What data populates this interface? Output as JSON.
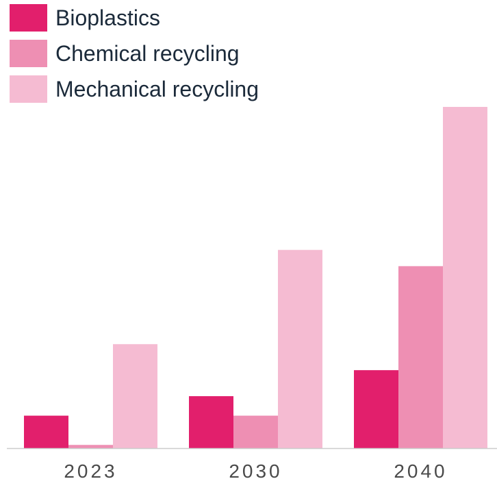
{
  "chart_data": {
    "type": "bar",
    "title": "",
    "xlabel": "",
    "ylabel": "",
    "categories": [
      "2023",
      "2030",
      "2040"
    ],
    "series": [
      {
        "name": "Bioplastics",
        "color": "#e21f6c",
        "values": [
          1.0,
          1.6,
          2.4
        ]
      },
      {
        "name": "Chemical recycling",
        "color": "#ee8fb3",
        "values": [
          0.1,
          1.0,
          5.6
        ]
      },
      {
        "name": "Mechanical recycling",
        "color": "#f5bbd2",
        "values": [
          3.2,
          6.1,
          10.5
        ]
      }
    ],
    "ylim": [
      0,
      10.5
    ],
    "grid": false,
    "legend_position": "top-left"
  }
}
